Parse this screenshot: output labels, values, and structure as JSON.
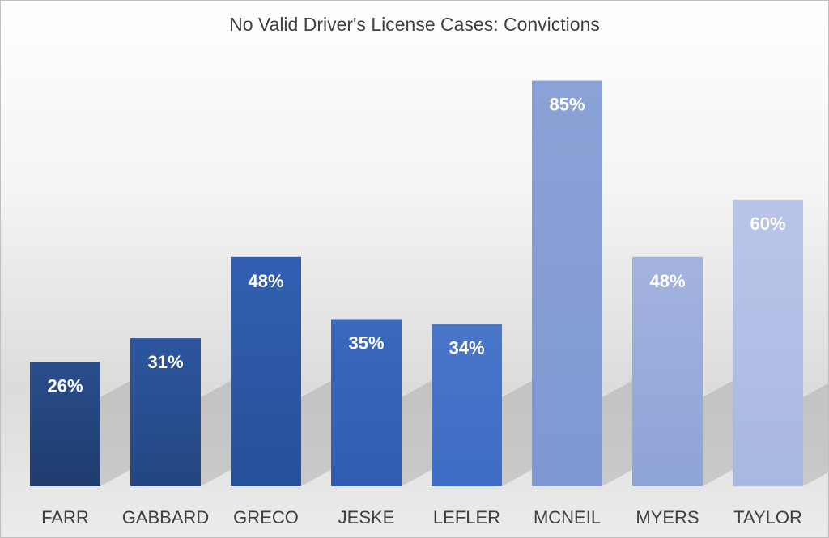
{
  "chart_data": {
    "type": "bar",
    "title": "No Valid Driver's License Cases: Convictions",
    "categories": [
      "FARR",
      "GABBARD",
      "GRECO",
      "JESKE",
      "LEFLER",
      "MCNEIL",
      "MYERS",
      "TAYLOR"
    ],
    "values": [
      26,
      31,
      48,
      35,
      34,
      85,
      48,
      60
    ],
    "data_labels": [
      "26%",
      "31%",
      "48%",
      "35%",
      "34%",
      "85%",
      "48%",
      "60%"
    ],
    "unit": "%",
    "ylim": [
      0,
      100
    ],
    "grid": false,
    "legend": "none",
    "colors": {
      "bars_top": [
        "#2a4d8c",
        "#2d56a0",
        "#325fb2",
        "#3a69be",
        "#4a76c8",
        "#8ba2d6",
        "#a3b3df",
        "#b9c4e8"
      ],
      "bars_bottom": [
        "#1f3c6e",
        "#234680",
        "#26509a",
        "#2d5cb0",
        "#3d6cc6",
        "#7f98d2",
        "#8ea3d8",
        "#a9b8e2"
      ],
      "title": "#404040",
      "axis_labels": "#404040",
      "data_labels": "#ffffff"
    }
  }
}
